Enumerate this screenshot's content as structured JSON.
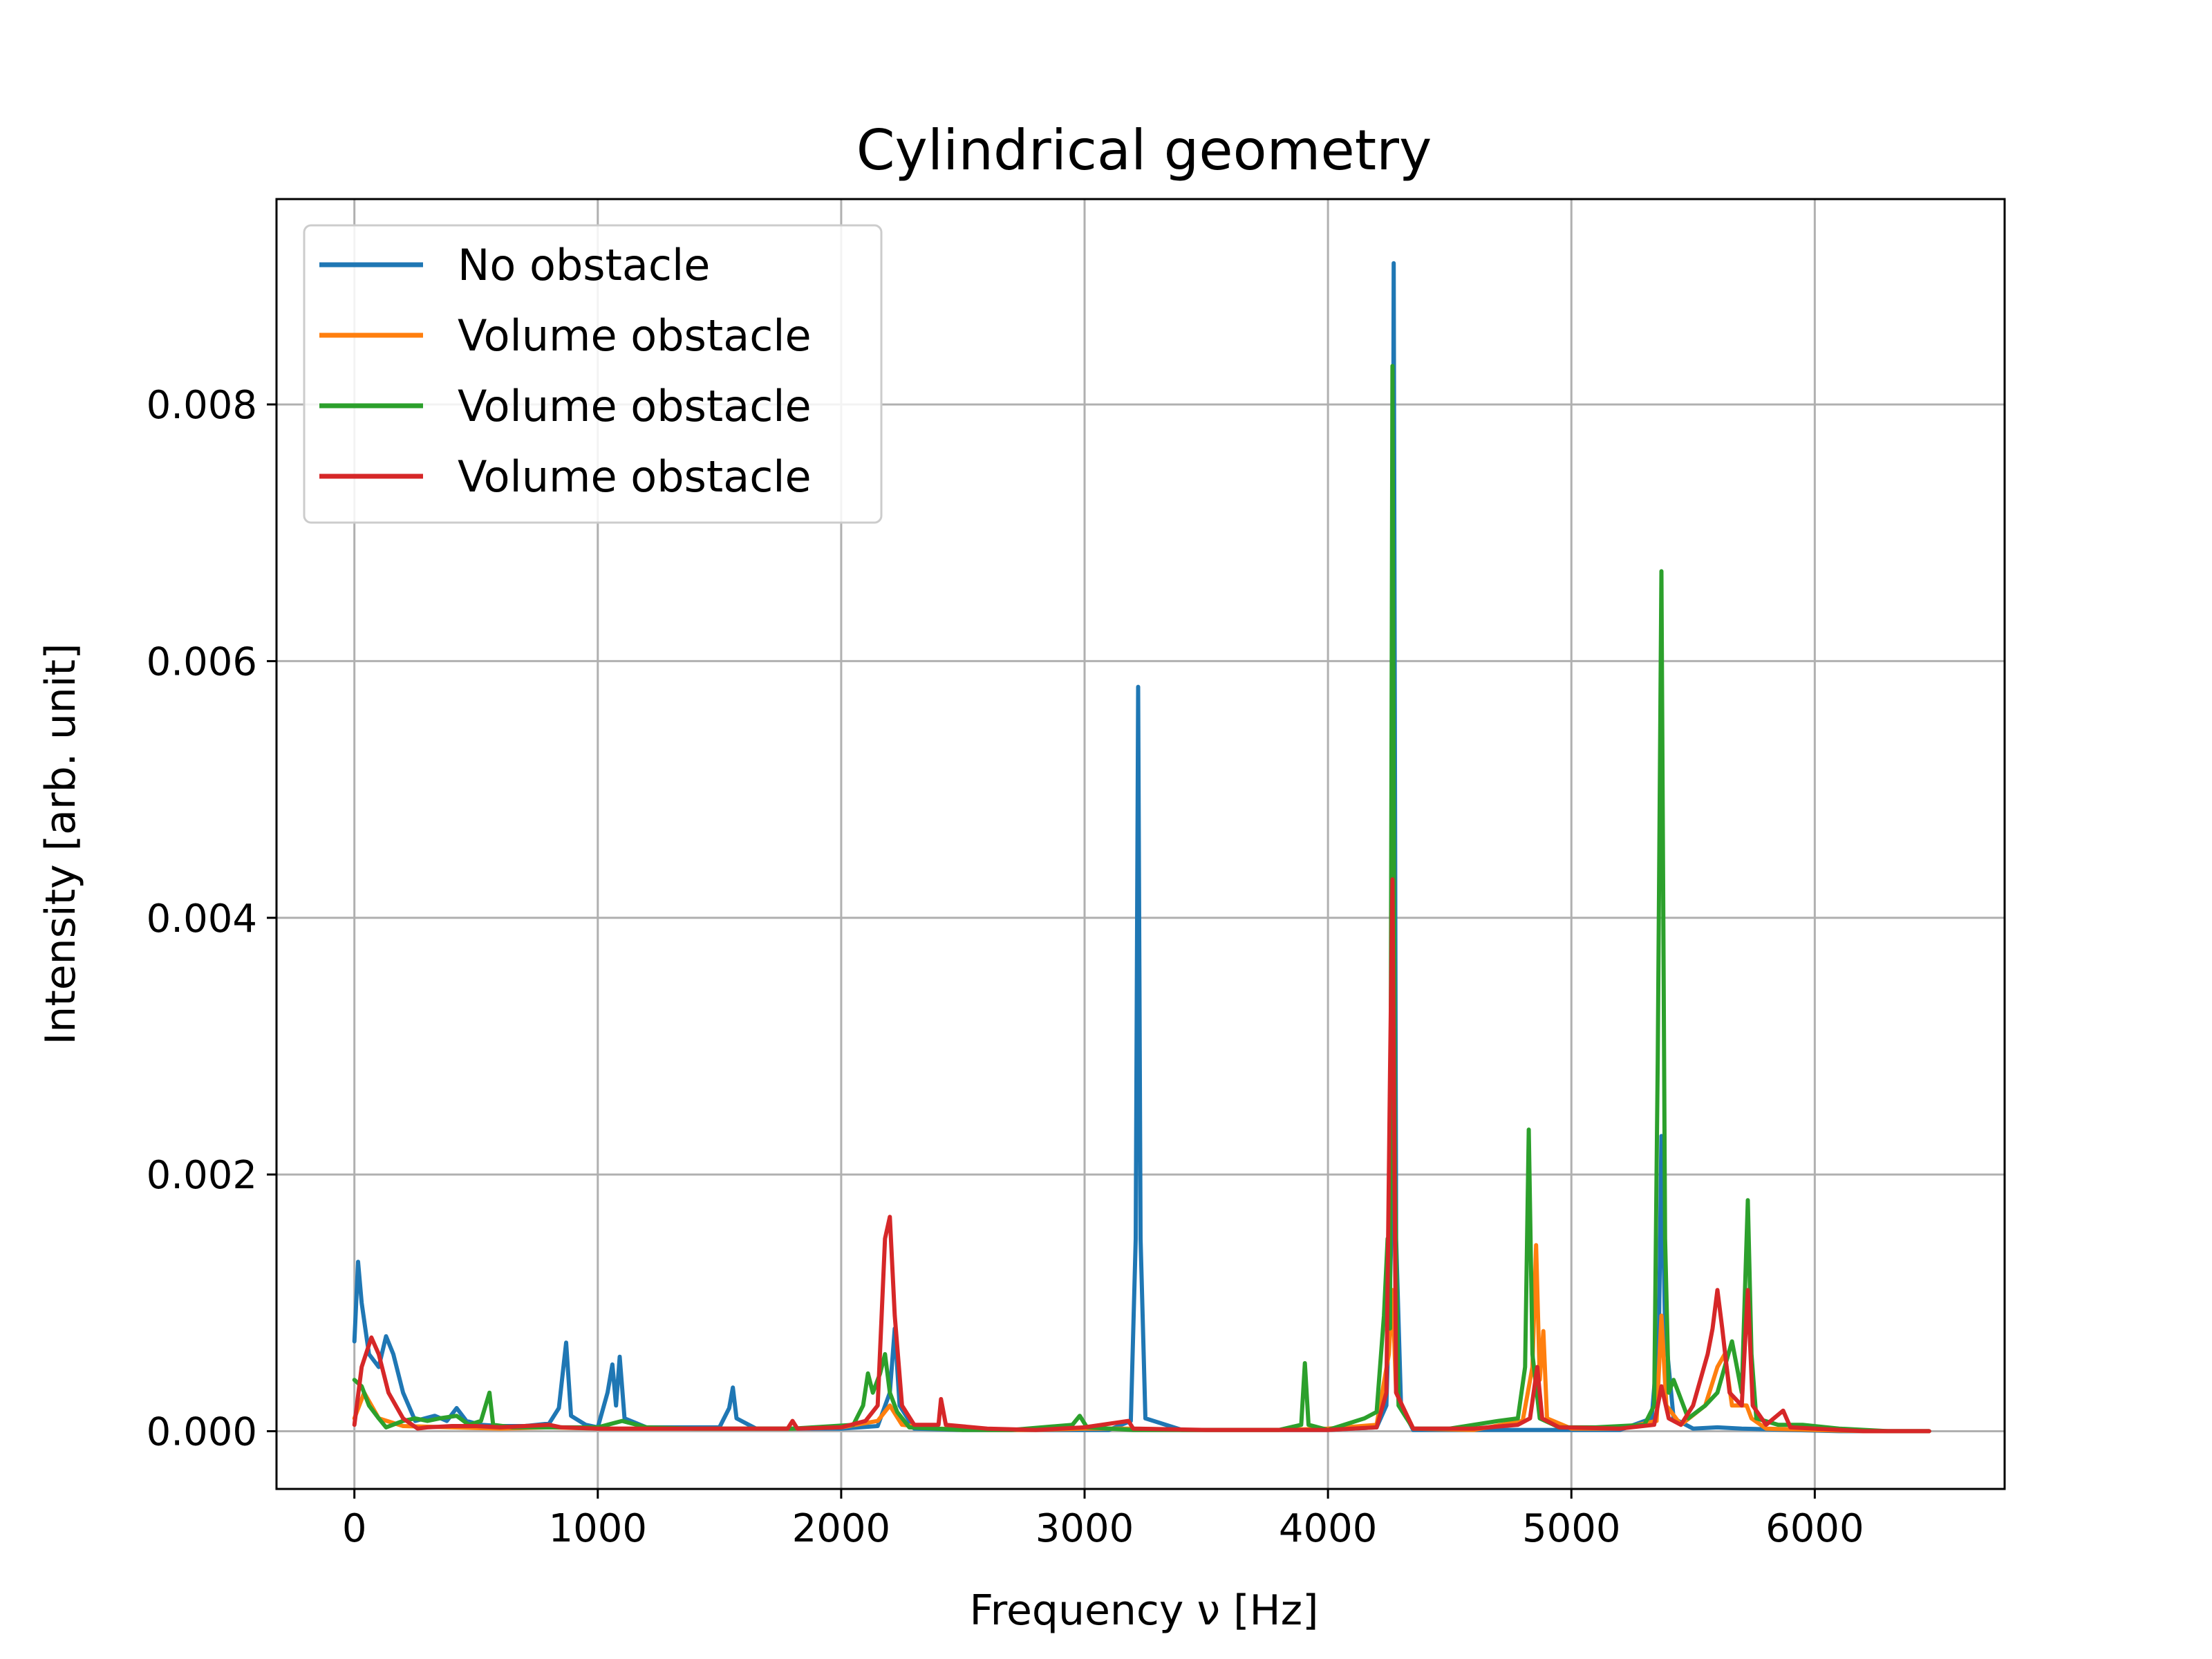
{
  "chart_data": {
    "type": "line",
    "title": "Cylindrical geometry",
    "xlabel": "Frequency ν [Hz]",
    "ylabel": "Intensity [arb. unit]",
    "xlim": [
      -320,
      6780
    ],
    "ylim": [
      -0.00045,
      0.0096
    ],
    "xticks": [
      0,
      1000,
      2000,
      3000,
      4000,
      5000,
      6000
    ],
    "xtick_labels": [
      "0",
      "1000",
      "2000",
      "3000",
      "4000",
      "5000",
      "6000"
    ],
    "yticks": [
      0.0,
      0.002,
      0.004,
      0.006,
      0.008
    ],
    "ytick_labels": [
      "0.000",
      "0.002",
      "0.004",
      "0.006",
      "0.008"
    ],
    "grid": true,
    "legend_position": "top-left",
    "series": [
      {
        "name": "No obstacle",
        "color": "#1f77b4",
        "points": [
          [
            0,
            0.0007
          ],
          [
            15,
            0.00132
          ],
          [
            30,
            0.001
          ],
          [
            60,
            0.0006
          ],
          [
            100,
            0.0005
          ],
          [
            130,
            0.00074
          ],
          [
            160,
            0.0006
          ],
          [
            200,
            0.0003
          ],
          [
            250,
            8e-05
          ],
          [
            330,
            0.00012
          ],
          [
            380,
            8e-05
          ],
          [
            420,
            0.00018
          ],
          [
            460,
            8e-05
          ],
          [
            520,
            5e-05
          ],
          [
            600,
            4e-05
          ],
          [
            700,
            4e-05
          ],
          [
            800,
            6e-05
          ],
          [
            840,
            0.00018
          ],
          [
            870,
            0.00069
          ],
          [
            890,
            0.00012
          ],
          [
            950,
            5e-05
          ],
          [
            1000,
            3e-05
          ],
          [
            1040,
            0.0003
          ],
          [
            1060,
            0.00052
          ],
          [
            1075,
            0.0002
          ],
          [
            1090,
            0.00058
          ],
          [
            1110,
            0.0001
          ],
          [
            1200,
            3e-05
          ],
          [
            1350,
            3e-05
          ],
          [
            1500,
            3e-05
          ],
          [
            1540,
            0.00018
          ],
          [
            1555,
            0.00034
          ],
          [
            1570,
            0.0001
          ],
          [
            1650,
            2e-05
          ],
          [
            1800,
            2e-05
          ],
          [
            2000,
            2e-05
          ],
          [
            2150,
            4e-05
          ],
          [
            2200,
            0.0003
          ],
          [
            2220,
            0.0008
          ],
          [
            2240,
            0.0002
          ],
          [
            2300,
            2e-05
          ],
          [
            2500,
            1e-05
          ],
          [
            2700,
            1e-05
          ],
          [
            2900,
            1e-05
          ],
          [
            3100,
            1e-05
          ],
          [
            3190,
            8e-05
          ],
          [
            3210,
            0.0015
          ],
          [
            3220,
            0.0058
          ],
          [
            3230,
            0.0015
          ],
          [
            3250,
            0.0001
          ],
          [
            3400,
            1e-05
          ],
          [
            3600,
            1e-05
          ],
          [
            3800,
            1e-05
          ],
          [
            4000,
            1e-05
          ],
          [
            4200,
            3e-05
          ],
          [
            4240,
            0.0002
          ],
          [
            4260,
            0.0015
          ],
          [
            4270,
            0.0091
          ],
          [
            4280,
            0.0015
          ],
          [
            4300,
            0.0002
          ],
          [
            4350,
            1e-05
          ],
          [
            4500,
            1e-05
          ],
          [
            4800,
            1e-05
          ],
          [
            5000,
            1e-05
          ],
          [
            5200,
            1e-05
          ],
          [
            5330,
            0.0001
          ],
          [
            5360,
            0.0008
          ],
          [
            5370,
            0.0023
          ],
          [
            5385,
            0.0008
          ],
          [
            5420,
            0.0001
          ],
          [
            5500,
            2e-05
          ],
          [
            5600,
            3e-05
          ],
          [
            5700,
            2e-05
          ],
          [
            5900,
            1e-05
          ],
          [
            6100,
            0
          ],
          [
            6300,
            0
          ],
          [
            6470,
            0
          ]
        ]
      },
      {
        "name": "Volume obstacle",
        "color": "#ff7f0e",
        "points": [
          [
            0,
            0.0001
          ],
          [
            40,
            0.0003
          ],
          [
            100,
            0.0001
          ],
          [
            200,
            4e-05
          ],
          [
            400,
            3e-05
          ],
          [
            600,
            2e-05
          ],
          [
            800,
            3e-05
          ],
          [
            1000,
            2e-05
          ],
          [
            1200,
            2e-05
          ],
          [
            1400,
            2e-05
          ],
          [
            1600,
            2e-05
          ],
          [
            1800,
            2e-05
          ],
          [
            2000,
            3e-05
          ],
          [
            2150,
            8e-05
          ],
          [
            2200,
            0.0002
          ],
          [
            2250,
            5e-05
          ],
          [
            2400,
            2e-05
          ],
          [
            2600,
            1e-05
          ],
          [
            2800,
            1e-05
          ],
          [
            3000,
            2e-05
          ],
          [
            3200,
            2e-05
          ],
          [
            3400,
            1e-05
          ],
          [
            3600,
            1e-05
          ],
          [
            3800,
            1e-05
          ],
          [
            4000,
            2e-05
          ],
          [
            4200,
            5e-05
          ],
          [
            4250,
            0.0006
          ],
          [
            4265,
            0.0011
          ],
          [
            4280,
            0.0003
          ],
          [
            4350,
            2e-05
          ],
          [
            4600,
            1e-05
          ],
          [
            4800,
            8e-05
          ],
          [
            4840,
            0.0005
          ],
          [
            4855,
            0.00145
          ],
          [
            4870,
            0.0004
          ],
          [
            4885,
            0.00078
          ],
          [
            4900,
            0.0001
          ],
          [
            5000,
            2e-05
          ],
          [
            5200,
            2e-05
          ],
          [
            5350,
            8e-05
          ],
          [
            5370,
            0.0009
          ],
          [
            5390,
            0.0002
          ],
          [
            5450,
            5e-05
          ],
          [
            5550,
            0.0002
          ],
          [
            5600,
            0.0005
          ],
          [
            5630,
            0.0006
          ],
          [
            5660,
            0.0002
          ],
          [
            5720,
            0.0002
          ],
          [
            5740,
            0.0001
          ],
          [
            5800,
            2e-05
          ],
          [
            6000,
            1e-05
          ],
          [
            6200,
            0
          ],
          [
            6470,
            0
          ]
        ]
      },
      {
        "name": "Volume obstacle",
        "color": "#2ca02c",
        "points": [
          [
            0,
            0.0004
          ],
          [
            30,
            0.00035
          ],
          [
            60,
            0.0002
          ],
          [
            100,
            0.0001
          ],
          [
            130,
            3e-05
          ],
          [
            200,
            8e-05
          ],
          [
            250,
            0.0001
          ],
          [
            300,
            8e-05
          ],
          [
            350,
            0.0001
          ],
          [
            420,
            0.00012
          ],
          [
            470,
            5e-05
          ],
          [
            520,
            8e-05
          ],
          [
            555,
            0.0003
          ],
          [
            570,
            5e-05
          ],
          [
            650,
            3e-05
          ],
          [
            800,
            3e-05
          ],
          [
            1000,
            3e-05
          ],
          [
            1100,
            8e-05
          ],
          [
            1200,
            3e-05
          ],
          [
            1400,
            2e-05
          ],
          [
            1600,
            2e-05
          ],
          [
            1800,
            2e-05
          ],
          [
            2050,
            5e-05
          ],
          [
            2090,
            0.0002
          ],
          [
            2110,
            0.00045
          ],
          [
            2130,
            0.0003
          ],
          [
            2160,
            0.00045
          ],
          [
            2180,
            0.0006
          ],
          [
            2200,
            0.0003
          ],
          [
            2230,
            0.00015
          ],
          [
            2280,
            3e-05
          ],
          [
            2500,
            1e-05
          ],
          [
            2700,
            1e-05
          ],
          [
            2950,
            5e-05
          ],
          [
            2980,
            0.00012
          ],
          [
            3010,
            3e-05
          ],
          [
            3200,
            1e-05
          ],
          [
            3500,
            1e-05
          ],
          [
            3800,
            1e-05
          ],
          [
            3890,
            5e-05
          ],
          [
            3905,
            0.00053
          ],
          [
            3920,
            5e-05
          ],
          [
            4000,
            1e-05
          ],
          [
            4150,
            0.0001
          ],
          [
            4200,
            0.00015
          ],
          [
            4230,
            0.0009
          ],
          [
            4245,
            0.0015
          ],
          [
            4255,
            0.0008
          ],
          [
            4265,
            0.0083
          ],
          [
            4275,
            0.002
          ],
          [
            4290,
            0.0002
          ],
          [
            4350,
            2e-05
          ],
          [
            4500,
            2e-05
          ],
          [
            4700,
            8e-05
          ],
          [
            4780,
            0.0001
          ],
          [
            4810,
            0.0005
          ],
          [
            4825,
            0.00235
          ],
          [
            4840,
            0.0006
          ],
          [
            4870,
            0.0001
          ],
          [
            4950,
            3e-05
          ],
          [
            5100,
            3e-05
          ],
          [
            5300,
            5e-05
          ],
          [
            5340,
            0.0002
          ],
          [
            5355,
            0.0029
          ],
          [
            5370,
            0.0067
          ],
          [
            5385,
            0.0015
          ],
          [
            5400,
            0.0003
          ],
          [
            5420,
            0.0004
          ],
          [
            5440,
            0.0003
          ],
          [
            5480,
            0.0001
          ],
          [
            5550,
            0.0002
          ],
          [
            5600,
            0.0003
          ],
          [
            5660,
            0.0007
          ],
          [
            5680,
            0.0005
          ],
          [
            5700,
            0.0003
          ],
          [
            5725,
            0.0018
          ],
          [
            5740,
            0.0006
          ],
          [
            5760,
            0.0001
          ],
          [
            5850,
            5e-05
          ],
          [
            5950,
            5e-05
          ],
          [
            6100,
            2e-05
          ],
          [
            6300,
            0
          ],
          [
            6470,
            0
          ]
        ]
      },
      {
        "name": "Volume obstacle",
        "color": "#d62728",
        "points": [
          [
            0,
            5e-05
          ],
          [
            30,
            0.0005
          ],
          [
            70,
            0.00073
          ],
          [
            100,
            0.0006
          ],
          [
            140,
            0.0003
          ],
          [
            200,
            0.0001
          ],
          [
            260,
            2e-05
          ],
          [
            300,
            3e-05
          ],
          [
            400,
            4e-05
          ],
          [
            500,
            4e-05
          ],
          [
            600,
            3e-05
          ],
          [
            700,
            4e-05
          ],
          [
            800,
            5e-05
          ],
          [
            850,
            3e-05
          ],
          [
            1000,
            2e-05
          ],
          [
            1200,
            2e-05
          ],
          [
            1400,
            2e-05
          ],
          [
            1600,
            2e-05
          ],
          [
            1780,
            2e-05
          ],
          [
            1800,
            8e-05
          ],
          [
            1820,
            2e-05
          ],
          [
            2000,
            3e-05
          ],
          [
            2100,
            8e-05
          ],
          [
            2150,
            0.0002
          ],
          [
            2180,
            0.0015
          ],
          [
            2200,
            0.00167
          ],
          [
            2220,
            0.0009
          ],
          [
            2250,
            0.0002
          ],
          [
            2300,
            5e-05
          ],
          [
            2400,
            5e-05
          ],
          [
            2410,
            0.00025
          ],
          [
            2430,
            5e-05
          ],
          [
            2600,
            2e-05
          ],
          [
            2800,
            1e-05
          ],
          [
            3000,
            3e-05
          ],
          [
            3180,
            8e-05
          ],
          [
            3200,
            2e-05
          ],
          [
            3500,
            1e-05
          ],
          [
            3800,
            1e-05
          ],
          [
            4000,
            1e-05
          ],
          [
            4200,
            3e-05
          ],
          [
            4240,
            0.0003
          ],
          [
            4255,
            0.0028
          ],
          [
            4265,
            0.0043
          ],
          [
            4280,
            0.0003
          ],
          [
            4350,
            2e-05
          ],
          [
            4600,
            2e-05
          ],
          [
            4780,
            5e-05
          ],
          [
            4830,
            0.0001
          ],
          [
            4860,
            0.0005
          ],
          [
            4880,
            0.0001
          ],
          [
            4950,
            3e-05
          ],
          [
            5200,
            2e-05
          ],
          [
            5340,
            5e-05
          ],
          [
            5370,
            0.00035
          ],
          [
            5400,
            0.0001
          ],
          [
            5450,
            5e-05
          ],
          [
            5500,
            0.0002
          ],
          [
            5560,
            0.0006
          ],
          [
            5580,
            0.0008
          ],
          [
            5600,
            0.0011
          ],
          [
            5620,
            0.0008
          ],
          [
            5650,
            0.0003
          ],
          [
            5700,
            0.0002
          ],
          [
            5725,
            0.0011
          ],
          [
            5745,
            0.0002
          ],
          [
            5800,
            5e-05
          ],
          [
            5870,
            0.00016
          ],
          [
            5900,
            3e-05
          ],
          [
            6000,
            2e-05
          ],
          [
            6200,
            0
          ],
          [
            6470,
            0
          ]
        ]
      }
    ]
  }
}
